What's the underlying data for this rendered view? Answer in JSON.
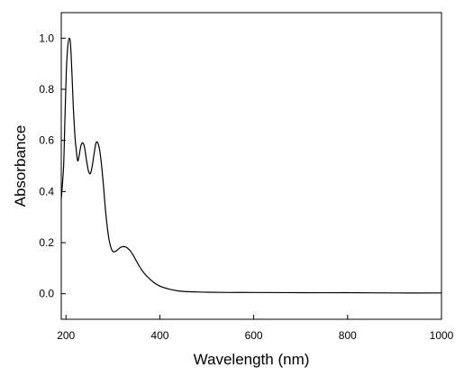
{
  "chart_data": {
    "type": "line",
    "title": "",
    "xlabel": "Wavelength (nm)",
    "ylabel": "Absorbance",
    "xlim": [
      190,
      1000
    ],
    "ylim": [
      -0.1,
      1.1
    ],
    "x_ticks": [
      200,
      400,
      600,
      800,
      1000
    ],
    "x_tick_labels": [
      "200",
      "400",
      "600",
      "800",
      "1000"
    ],
    "y_ticks": [
      0.0,
      0.2,
      0.4,
      0.6,
      0.8,
      1.0
    ],
    "y_tick_labels": [
      "0.0",
      "0.2",
      "0.4",
      "0.6",
      "0.8",
      "1.0"
    ],
    "grid": false,
    "legend": "none",
    "colors": {
      "line": "#000000",
      "axes": "#000000",
      "background": "#ffffff"
    },
    "series": [
      {
        "x": [
          190,
          195,
          198,
          201,
          204,
          207,
          210,
          213,
          216,
          219,
          222,
          225,
          228,
          232,
          236,
          240,
          244,
          248,
          252,
          256,
          260,
          264,
          268,
          272,
          276,
          280,
          284,
          288,
          292,
          296,
          300,
          305,
          310,
          315,
          320,
          325,
          330,
          335,
          340,
          345,
          350,
          355,
          360,
          365,
          370,
          380,
          390,
          400,
          410,
          420,
          430,
          440,
          450,
          460,
          480,
          500,
          550,
          600,
          700,
          800,
          900,
          1000
        ],
        "y": [
          0.37,
          0.5,
          0.7,
          0.88,
          0.97,
          1.0,
          0.97,
          0.85,
          0.72,
          0.62,
          0.56,
          0.52,
          0.54,
          0.58,
          0.59,
          0.57,
          0.52,
          0.48,
          0.47,
          0.5,
          0.55,
          0.59,
          0.59,
          0.56,
          0.5,
          0.42,
          0.33,
          0.26,
          0.21,
          0.18,
          0.165,
          0.165,
          0.172,
          0.18,
          0.184,
          0.184,
          0.18,
          0.172,
          0.16,
          0.145,
          0.128,
          0.112,
          0.097,
          0.084,
          0.073,
          0.055,
          0.04,
          0.03,
          0.023,
          0.018,
          0.014,
          0.011,
          0.009,
          0.008,
          0.007,
          0.006,
          0.005,
          0.005,
          0.004,
          0.004,
          0.003,
          0.003
        ]
      }
    ]
  }
}
